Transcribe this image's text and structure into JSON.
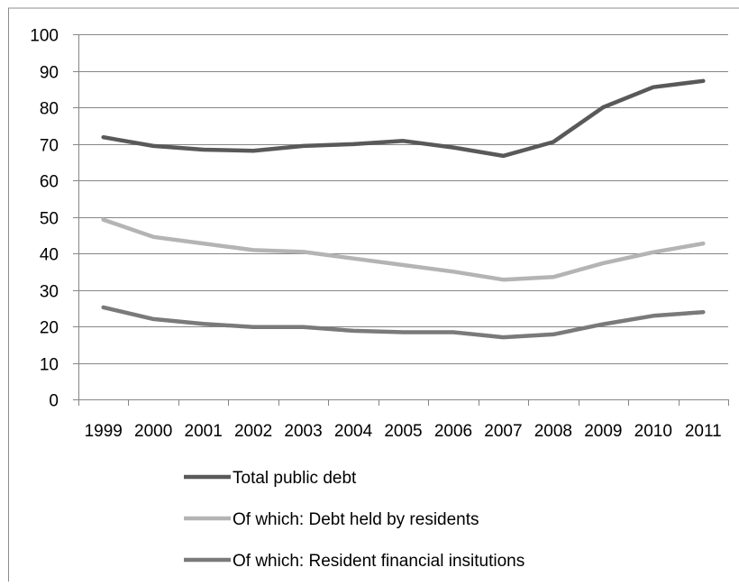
{
  "chart_data": {
    "type": "line",
    "title": "",
    "xlabel": "",
    "ylabel": "",
    "ylim": [
      0,
      100
    ],
    "yticks": [
      0,
      10,
      20,
      30,
      40,
      50,
      60,
      70,
      80,
      90,
      100
    ],
    "grid": "horizontal",
    "legend_position": "bottom",
    "categories": [
      "1999",
      "2000",
      "2001",
      "2002",
      "2003",
      "2004",
      "2005",
      "2006",
      "2007",
      "2008",
      "2009",
      "2010",
      "2011"
    ],
    "series": [
      {
        "name": "Total public debt",
        "color": "#595959",
        "values": [
          71.8,
          69.4,
          68.4,
          68.1,
          69.4,
          69.9,
          70.8,
          69.0,
          66.7,
          70.5,
          80.0,
          85.5,
          87.2
        ]
      },
      {
        "name": "Of which: Debt held by residents",
        "color": "#b4b4b4",
        "values": [
          49.2,
          44.5,
          42.7,
          40.9,
          40.4,
          38.6,
          36.8,
          35.0,
          32.8,
          33.5,
          37.3,
          40.3,
          42.7
        ]
      },
      {
        "name": "Of which: Resident financial insitutions",
        "color": "#7a7a7a",
        "values": [
          25.2,
          22.0,
          20.7,
          19.8,
          19.8,
          18.8,
          18.4,
          18.4,
          17.0,
          17.8,
          20.6,
          22.9,
          23.9
        ]
      }
    ]
  }
}
